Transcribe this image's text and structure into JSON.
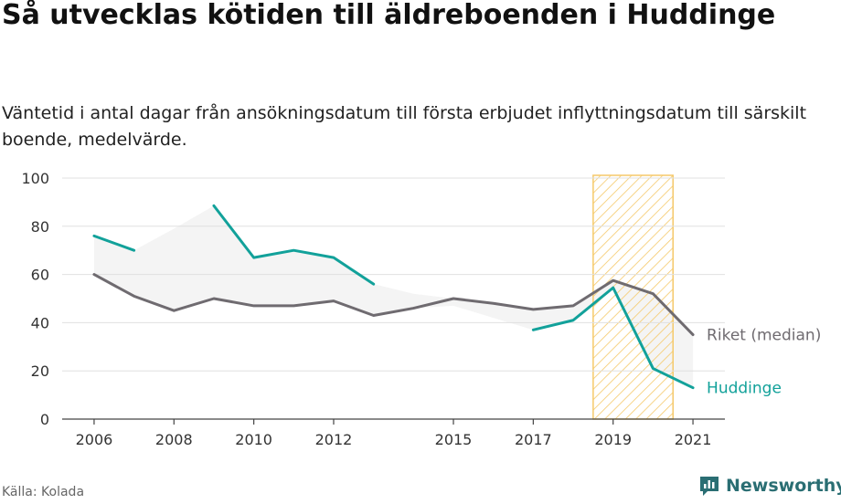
{
  "title": "Så utvecklas kötiden till äldreboenden i Huddinge",
  "subtitle": "Väntetid i antal dagar från ansökningsdatum till första erbjudet inflyttningsdatum till särskilt boende, medelvärde.",
  "source": "Källa: Kolada",
  "brand": "Newsworthy",
  "colors": {
    "huddinge": "#12a19a",
    "riket": "#6f6b70",
    "highlight": "#f5c96a",
    "band": "#f0f0f0",
    "grid": "#e0e0e0",
    "brand": "#2a6e73"
  },
  "chart_data": {
    "type": "line",
    "x": [
      2006,
      2007,
      2008,
      2009,
      2010,
      2011,
      2012,
      2013,
      2014,
      2015,
      2016,
      2017,
      2018,
      2019,
      2020,
      2021
    ],
    "xticks": [
      2006,
      2008,
      2010,
      2012,
      2015,
      2017,
      2019,
      2021
    ],
    "yticks": [
      0,
      20,
      40,
      60,
      80,
      100
    ],
    "ylim": [
      0,
      100
    ],
    "grid": true,
    "highlight_x": [
      2018.5,
      2020.5
    ],
    "series": [
      {
        "name": "Riket (median)",
        "values": [
          60,
          51,
          45,
          50,
          47,
          47,
          49,
          43,
          46,
          50,
          48,
          45.5,
          47,
          57.5,
          52,
          35
        ]
      },
      {
        "name": "Huddinge",
        "values": [
          76,
          70,
          null,
          88.5,
          67,
          70,
          67,
          56,
          null,
          null,
          null,
          37,
          41,
          54.5,
          21,
          13
        ]
      }
    ],
    "band_upper": [
      76,
      70,
      79,
      88.5,
      67,
      70,
      67,
      56,
      52,
      50,
      48,
      45.5,
      47,
      57.5,
      52,
      35
    ],
    "band_lower": [
      60,
      51,
      45,
      50,
      47,
      47,
      49,
      43,
      46,
      47,
      42,
      37,
      41,
      54.5,
      21,
      13
    ]
  }
}
